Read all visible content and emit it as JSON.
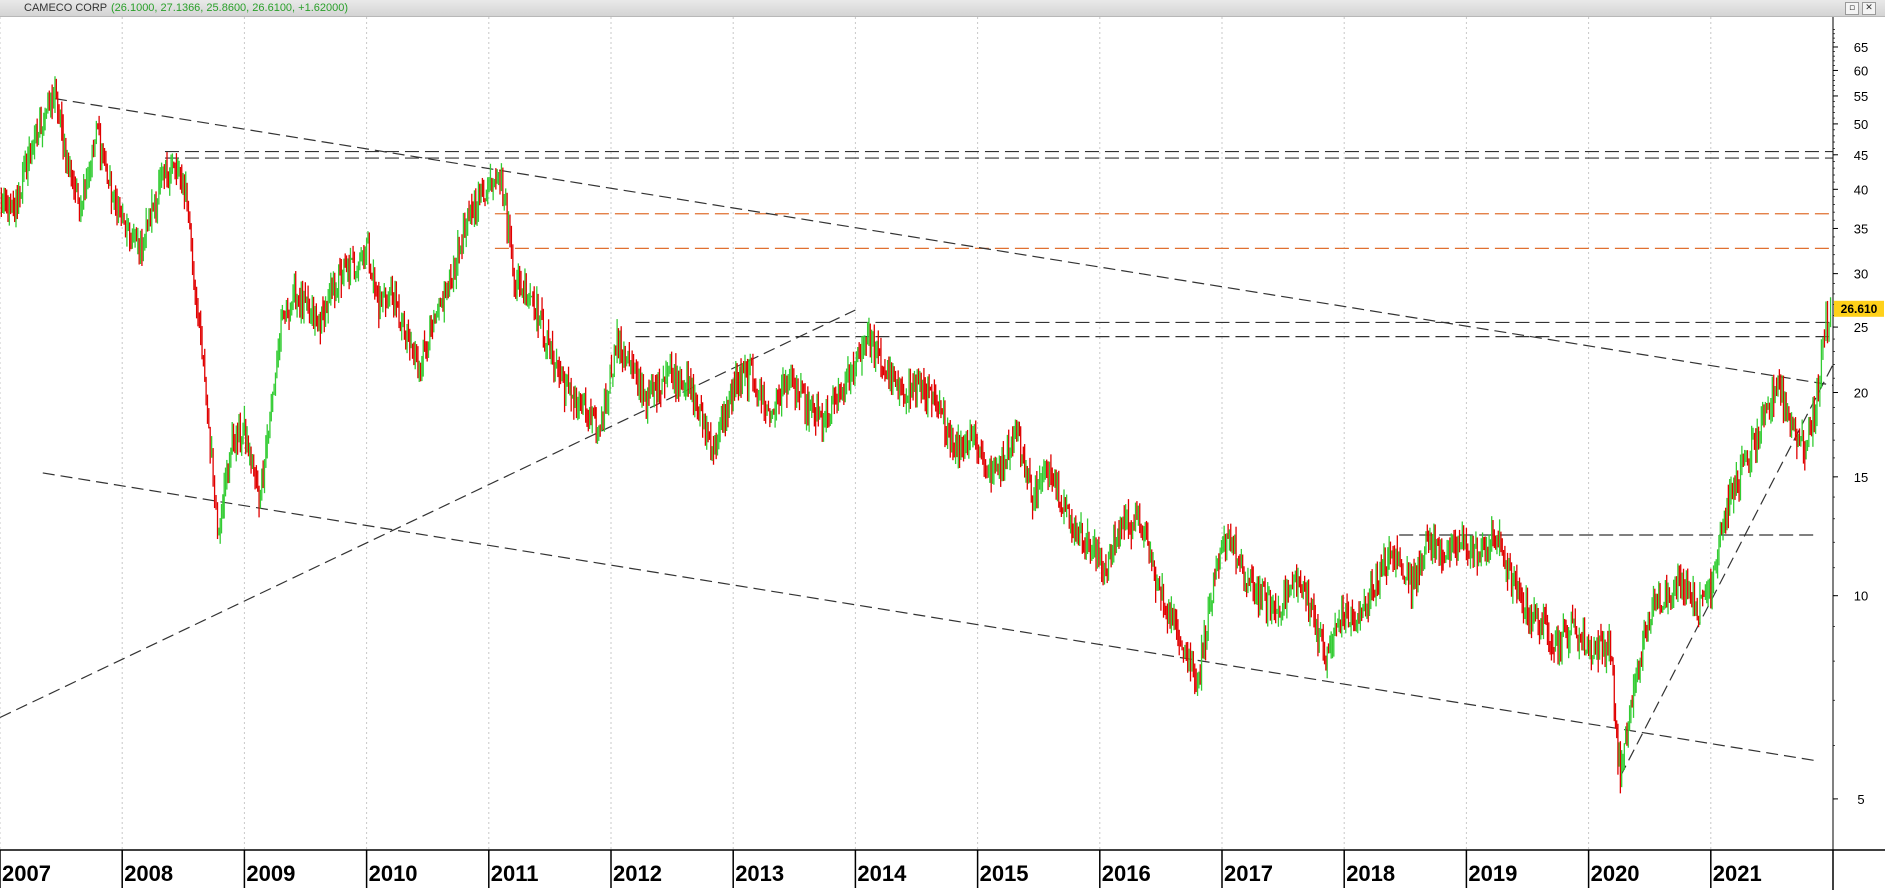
{
  "window": {
    "title": "CAMECO CORP",
    "ohlc_text": "(26.1000, 27.1366, 25.8600, 26.6100, +1.62000)",
    "restore_icon": "restore-icon",
    "close_icon": "close-icon"
  },
  "colors": {
    "up": "#33cc33",
    "down": "#e00000",
    "trendline": "#333333",
    "resistance_band": "#e07030",
    "last_price_bg": "#ffd11a",
    "grid": "#c8c8c8"
  },
  "chart_data": {
    "type": "candlestick",
    "title": "CAMECO CORP",
    "y_scale": "log",
    "ylim": [
      4.2,
      72
    ],
    "y_ticks": [
      5,
      10,
      15,
      20,
      25,
      30,
      35,
      40,
      45,
      50,
      55,
      60,
      65
    ],
    "xlim": [
      2007.0,
      2022.0
    ],
    "x_ticks": [
      "2007",
      "2008",
      "2009",
      "2010",
      "2011",
      "2012",
      "2013",
      "2014",
      "2015",
      "2016",
      "2017",
      "2018",
      "2019",
      "2020",
      "2021"
    ],
    "grid": "vertical dotted",
    "last_price": "26.610",
    "price_path": [
      [
        2007.0,
        38.5
      ],
      [
        2007.12,
        37.2
      ],
      [
        2007.25,
        46
      ],
      [
        2007.38,
        52
      ],
      [
        2007.45,
        55.5
      ],
      [
        2007.55,
        44
      ],
      [
        2007.65,
        38
      ],
      [
        2007.8,
        49
      ],
      [
        2007.9,
        40
      ],
      [
        2008.05,
        34
      ],
      [
        2008.15,
        33
      ],
      [
        2008.3,
        40
      ],
      [
        2008.4,
        43.5
      ],
      [
        2008.52,
        40
      ],
      [
        2008.62,
        26
      ],
      [
        2008.72,
        17
      ],
      [
        2008.78,
        12.5
      ],
      [
        2008.9,
        17
      ],
      [
        2009.0,
        17.5
      ],
      [
        2009.12,
        14
      ],
      [
        2009.22,
        19
      ],
      [
        2009.3,
        25
      ],
      [
        2009.42,
        28
      ],
      [
        2009.6,
        25
      ],
      [
        2009.75,
        29
      ],
      [
        2009.9,
        31
      ],
      [
        2010.0,
        33
      ],
      [
        2010.1,
        27
      ],
      [
        2010.2,
        28
      ],
      [
        2010.32,
        24
      ],
      [
        2010.42,
        22
      ],
      [
        2010.55,
        25
      ],
      [
        2010.7,
        30
      ],
      [
        2010.85,
        37
      ],
      [
        2010.98,
        40
      ],
      [
        2011.08,
        43
      ],
      [
        2011.15,
        36
      ],
      [
        2011.22,
        29
      ],
      [
        2011.35,
        28
      ],
      [
        2011.5,
        23
      ],
      [
        2011.62,
        20.5
      ],
      [
        2011.75,
        19
      ],
      [
        2011.9,
        17.5
      ],
      [
        2012.05,
        24
      ],
      [
        2012.15,
        22
      ],
      [
        2012.3,
        19.5
      ],
      [
        2012.45,
        21.5
      ],
      [
        2012.6,
        21
      ],
      [
        2012.75,
        18
      ],
      [
        2012.85,
        16.5
      ],
      [
        2013.0,
        20.5
      ],
      [
        2013.15,
        21.5
      ],
      [
        2013.3,
        18.5
      ],
      [
        2013.45,
        21
      ],
      [
        2013.6,
        19
      ],
      [
        2013.75,
        18
      ],
      [
        2013.95,
        21
      ],
      [
        2014.1,
        24.5
      ],
      [
        2014.22,
        22
      ],
      [
        2014.35,
        20
      ],
      [
        2014.55,
        20.5
      ],
      [
        2014.7,
        18.5
      ],
      [
        2014.82,
        16.5
      ],
      [
        2014.95,
        17.5
      ],
      [
        2015.1,
        15
      ],
      [
        2015.2,
        16
      ],
      [
        2015.32,
        17.5
      ],
      [
        2015.45,
        14
      ],
      [
        2015.6,
        15.5
      ],
      [
        2015.75,
        13
      ],
      [
        2015.9,
        12
      ],
      [
        2016.05,
        11
      ],
      [
        2016.2,
        13
      ],
      [
        2016.35,
        12.5
      ],
      [
        2016.5,
        10
      ],
      [
        2016.65,
        8.8
      ],
      [
        2016.8,
        7.5
      ],
      [
        2016.92,
        10
      ],
      [
        2017.05,
        12.5
      ],
      [
        2017.18,
        10.5
      ],
      [
        2017.32,
        10
      ],
      [
        2017.45,
        9.5
      ],
      [
        2017.6,
        10.5
      ],
      [
        2017.72,
        9.8
      ],
      [
        2017.85,
        8
      ],
      [
        2017.98,
        9.5
      ],
      [
        2018.1,
        9
      ],
      [
        2018.25,
        10.5
      ],
      [
        2018.4,
        11.5
      ],
      [
        2018.55,
        10.5
      ],
      [
        2018.68,
        12
      ],
      [
        2018.82,
        11.5
      ],
      [
        2019.0,
        12
      ],
      [
        2019.1,
        11.5
      ],
      [
        2019.25,
        12.2
      ],
      [
        2019.38,
        10.5
      ],
      [
        2019.5,
        9.5
      ],
      [
        2019.62,
        9
      ],
      [
        2019.75,
        8.5
      ],
      [
        2019.88,
        9
      ],
      [
        2020.0,
        8.3
      ],
      [
        2020.18,
        8.5
      ],
      [
        2020.22,
        6.5
      ],
      [
        2020.26,
        5.4
      ],
      [
        2020.4,
        7.8
      ],
      [
        2020.52,
        9.5
      ],
      [
        2020.65,
        10.2
      ],
      [
        2020.8,
        10.5
      ],
      [
        2020.9,
        9.5
      ],
      [
        2021.0,
        10.5
      ],
      [
        2021.1,
        13
      ],
      [
        2021.22,
        15
      ],
      [
        2021.38,
        17
      ],
      [
        2021.48,
        19
      ],
      [
        2021.55,
        21
      ],
      [
        2021.65,
        18
      ],
      [
        2021.78,
        16.5
      ],
      [
        2021.88,
        20
      ],
      [
        2021.93,
        25
      ],
      [
        2021.98,
        26.6
      ]
    ],
    "annotations": {
      "horizontal_levels": [
        {
          "y": 44.5,
          "x_from": 2008.35,
          "x_to": 2022.0,
          "style": "dashed",
          "color": "trendline"
        },
        {
          "y": 45.5,
          "x_from": 2008.35,
          "x_to": 2022.0,
          "style": "dashed",
          "color": "trendline"
        },
        {
          "y": 36.8,
          "x_from": 2011.05,
          "x_to": 2022.0,
          "style": "dashed",
          "color": "resistance_band"
        },
        {
          "y": 32.7,
          "x_from": 2011.05,
          "x_to": 2022.0,
          "style": "dashed",
          "color": "resistance_band"
        },
        {
          "y": 25.4,
          "x_from": 2012.2,
          "x_to": 2022.0,
          "style": "dashed",
          "color": "trendline"
        },
        {
          "y": 24.2,
          "x_from": 2012.2,
          "x_to": 2022.0,
          "style": "dashed",
          "color": "trendline"
        },
        {
          "y": 12.3,
          "x_from": 2018.45,
          "x_to": 2021.85,
          "style": "dashed",
          "color": "trendline"
        }
      ],
      "trendlines": [
        {
          "from": [
            2007.45,
            54.5
          ],
          "to": [
            2022.0,
            20.5
          ]
        },
        {
          "from": [
            2007.35,
            15.2
          ],
          "to": [
            2021.85,
            5.7
          ]
        },
        {
          "from": [
            2007.0,
            6.6
          ],
          "to": [
            2014.0,
            26.5
          ]
        },
        {
          "from": [
            2020.26,
            5.4
          ],
          "to": [
            2022.0,
            22.0
          ]
        }
      ]
    }
  }
}
